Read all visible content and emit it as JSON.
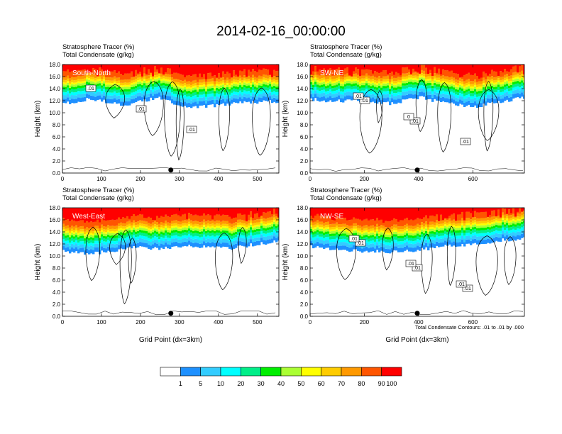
{
  "figure_title": "2014-02-16_00:00:00",
  "xlabel": "Grid Point (dx=3km)",
  "contour_note": "Total Condensate Contours: .01 to .01 by .000",
  "colors": {
    "levels": [
      "#ffffff",
      "#1e90ff",
      "#33ccff",
      "#00ffff",
      "#00ee88",
      "#00ee00",
      "#aaff33",
      "#ffff00",
      "#ffcc00",
      "#ff9900",
      "#ff5500",
      "#ff0000"
    ],
    "colorbar_labels": [
      "1",
      "5",
      "10",
      "20",
      "30",
      "40",
      "50",
      "60",
      "70",
      "80",
      "90",
      "100"
    ]
  },
  "chart_data": [
    {
      "type": "heatmap",
      "panel_label": "South-North",
      "field_title": "Stratosphere Tracer   (%)",
      "contour_title": "Total Condensate   (g/kg)",
      "ylabel": "Height (km)",
      "ylim": [
        0,
        18
      ],
      "yticks": [
        "0.0",
        "2.0",
        "4.0",
        "6.0",
        "8.0",
        "10.0",
        "12.0",
        "14.0",
        "16.0",
        "18.0"
      ],
      "xlim": [
        0,
        555
      ],
      "xticks": [
        0,
        100,
        200,
        300,
        400,
        500
      ],
      "marker_x": 278,
      "contour_labels": [
        ".01",
        ".01",
        ".01"
      ],
      "tracer_profile": {
        "x": [
          0,
          60,
          120,
          160,
          200,
          260,
          300,
          360,
          420,
          480,
          555
        ],
        "base_km": [
          11.5,
          12.2,
          11.8,
          11.0,
          12.0,
          12.5,
          11.0,
          11.0,
          11.4,
          11.8,
          11.8
        ]
      },
      "has_xlabel": false
    },
    {
      "type": "heatmap",
      "panel_label": "SW-NE",
      "field_title": "Stratosphere Tracer   (%)",
      "contour_title": "Total Condensate   (g/kg)",
      "ylabel": "Height (km)",
      "ylim": [
        0,
        18
      ],
      "yticks": [
        "0.0",
        "2.0",
        "4.0",
        "6.0",
        "8.0",
        "10.0",
        "12.0",
        "14.0",
        "16.0",
        "18.0"
      ],
      "xlim": [
        0,
        790
      ],
      "xticks": [
        0,
        200,
        400,
        600
      ],
      "marker_x": 395,
      "contour_labels": [
        ".01",
        ".01",
        ".01",
        ".01",
        "0"
      ],
      "tracer_profile": {
        "x": [
          0,
          100,
          200,
          300,
          400,
          500,
          600,
          700,
          790
        ],
        "base_km": [
          12.2,
          11.9,
          12.0,
          11.5,
          12.6,
          11.5,
          11.0,
          11.8,
          12.6
        ]
      },
      "has_xlabel": false
    },
    {
      "type": "heatmap",
      "panel_label": "West-East",
      "field_title": "Stratosphere Tracer   (%)",
      "contour_title": "Total Condensate   (g/kg)",
      "ylabel": "Height (km)",
      "ylim": [
        0,
        18
      ],
      "yticks": [
        "0.0",
        "2.0",
        "4.0",
        "6.0",
        "8.0",
        "10.0",
        "12.0",
        "14.0",
        "16.0",
        "18.0"
      ],
      "xlim": [
        0,
        555
      ],
      "xticks": [
        0,
        100,
        200,
        300,
        400,
        500
      ],
      "marker_x": 278,
      "contour_labels": [],
      "tracer_profile": {
        "x": [
          0,
          60,
          120,
          180,
          240,
          300,
          360,
          420,
          480,
          555
        ],
        "base_km": [
          10.8,
          10.3,
          10.8,
          11.5,
          11.2,
          11.6,
          11.6,
          11.2,
          11.8,
          12.5
        ]
      },
      "has_xlabel": true
    },
    {
      "type": "heatmap",
      "panel_label": "NW-SE",
      "field_title": "Stratosphere Tracer   (%)",
      "contour_title": "Total Condensate   (g/kg)",
      "ylabel": "Height (km)",
      "ylim": [
        0,
        18
      ],
      "yticks": [
        "0.0",
        "2.0",
        "4.0",
        "6.0",
        "8.0",
        "10.0",
        "12.0",
        "14.0",
        "16.0",
        "18.0"
      ],
      "xlim": [
        0,
        790
      ],
      "xticks": [
        0,
        200,
        400,
        600
      ],
      "marker_x": 395,
      "contour_labels": [
        ".01",
        ".01",
        ".01",
        ".01",
        ".01",
        ".01"
      ],
      "tracer_profile": {
        "x": [
          0,
          100,
          200,
          300,
          400,
          500,
          600,
          700,
          790
        ],
        "base_km": [
          11.5,
          11.0,
          10.8,
          10.6,
          11.0,
          11.6,
          12.0,
          12.6,
          13.0
        ]
      },
      "has_xlabel": true
    }
  ]
}
